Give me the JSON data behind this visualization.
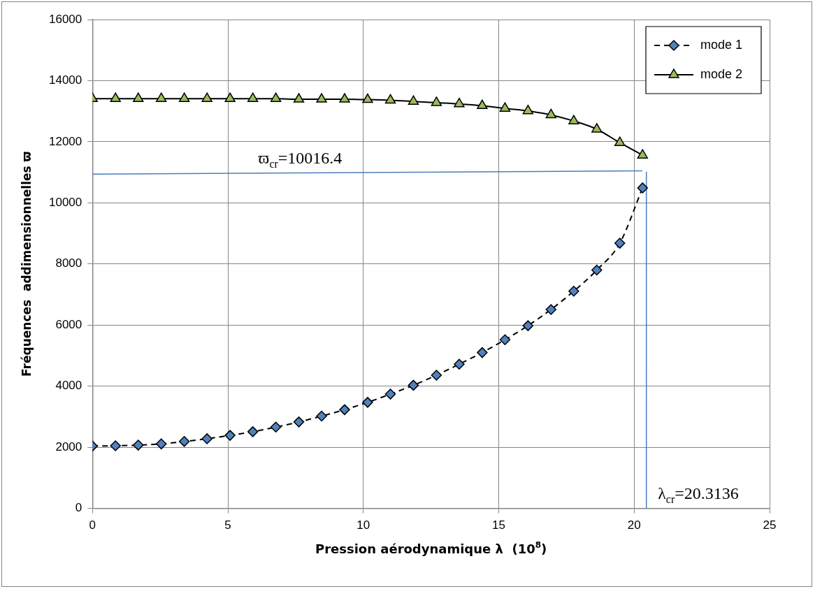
{
  "chart_data": {
    "type": "line",
    "xlabel": "Pression aérodynamique λ  (10$^{8}$)",
    "ylabel": "Fréquences  addimensionnelles ϖ",
    "xlim": [
      0,
      25
    ],
    "xticks": [
      0,
      5,
      10,
      15,
      20,
      25
    ],
    "ylim": [
      0,
      16000
    ],
    "yticks": [
      0,
      2000,
      4000,
      6000,
      8000,
      10000,
      12000,
      14000,
      16000
    ],
    "grid": true,
    "legend": "top right",
    "x": [
      0,
      0.85,
      1.69,
      2.54,
      3.39,
      4.23,
      5.08,
      5.92,
      6.77,
      7.62,
      8.46,
      9.31,
      10.16,
      11.0,
      11.85,
      12.7,
      13.54,
      14.39,
      15.23,
      16.08,
      16.93,
      17.77,
      18.62,
      19.47,
      20.31
    ],
    "series": [
      {
        "name": "mode 1",
        "color": "#4f81bd",
        "marker": "diamond",
        "line_style": "dashed",
        "values": [
          2040,
          2050,
          2070,
          2110,
          2190,
          2280,
          2390,
          2510,
          2660,
          2830,
          3020,
          3230,
          3470,
          3740,
          4030,
          4360,
          4720,
          5100,
          5520,
          5980,
          6510,
          7110,
          7800,
          8680,
          10490
        ]
      },
      {
        "name": "mode 2",
        "color": "#9bbb59",
        "marker": "triangle",
        "line_style": "solid",
        "values": [
          13410,
          13410,
          13410,
          13410,
          13410,
          13410,
          13410,
          13410,
          13410,
          13390,
          13390,
          13390,
          13380,
          13360,
          13320,
          13280,
          13240,
          13180,
          13090,
          13010,
          12880,
          12680,
          12410,
          11970,
          11560
        ]
      },
      {
        "color": "#4a7ebb",
        "marker": "none",
        "line_style": "solid",
        "x": [
          0,
          20.3
        ],
        "values": [
          10940,
          11050
        ]
      },
      {
        "color": "#4a7ebb",
        "marker": "none",
        "line_style": "solid",
        "x": [
          20.45,
          20.45
        ],
        "values": [
          11010,
          0
        ]
      }
    ],
    "annotations": [
      "ϖ$_{cr}$=10016.4",
      "λ$_{cr}$=20.3136"
    ]
  }
}
